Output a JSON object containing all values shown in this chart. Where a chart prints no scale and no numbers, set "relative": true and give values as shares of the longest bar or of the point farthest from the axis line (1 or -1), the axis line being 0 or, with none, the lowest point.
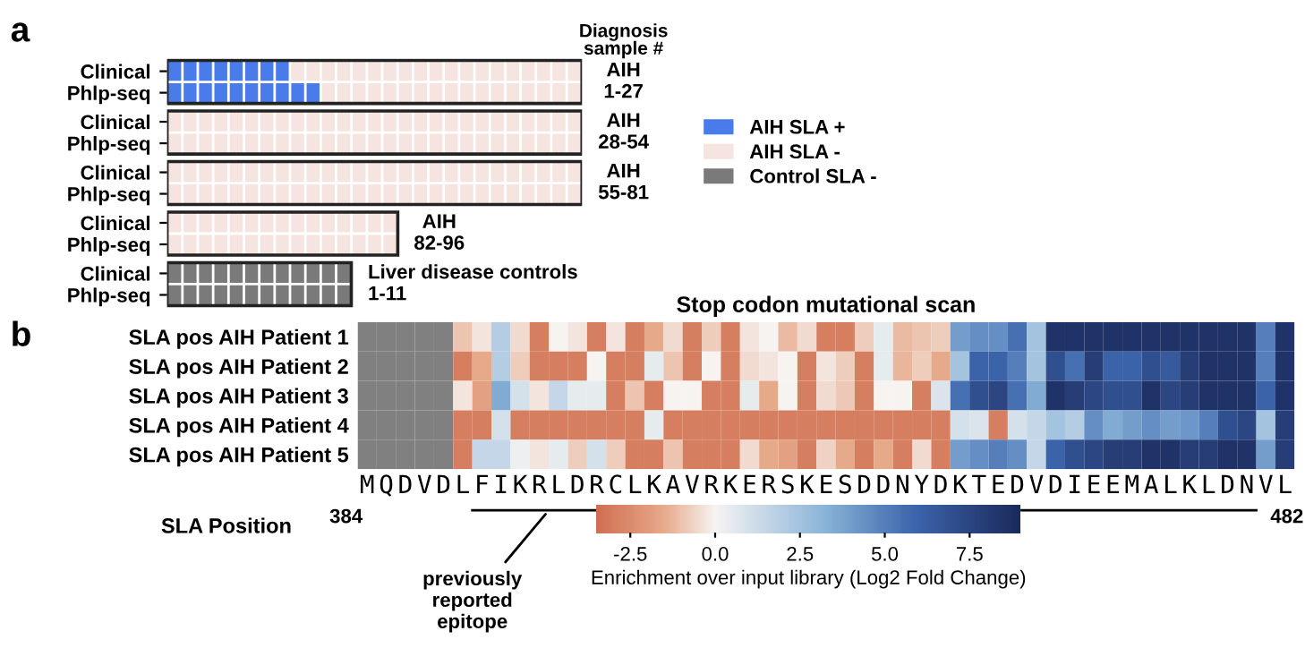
{
  "chart_data": [
    {
      "type": "bar",
      "orientation": "horizontal",
      "stacked": true,
      "categories": [
        "Clinical",
        "Phlp-seq",
        "Clinical",
        "Phlp-seq",
        "Clinical",
        "Phlp-seq",
        "Clinical",
        "Phlp-seq",
        "Clinical",
        "Phlp-seq"
      ],
      "series": [
        {
          "name": "AIH SLA +",
          "color": "#4a7bea",
          "values": [
            0.296,
            0.37,
            0,
            0,
            0,
            0,
            0,
            0,
            0,
            0
          ]
        },
        {
          "name": "AIH SLA -",
          "color": "#f5e4df",
          "values": [
            0.704,
            0.63,
            1,
            1,
            1,
            1,
            0.556,
            0.556,
            0,
            0
          ]
        },
        {
          "name": "Control SLA -",
          "color": "#7a7a7a",
          "values": [
            0,
            0,
            0,
            0,
            0,
            0,
            0,
            0,
            0.444,
            0.444
          ]
        }
      ],
      "relative": true,
      "tick_labels": "y",
      "legend": "right",
      "annotations": [
        "a",
        "Diagnosis\nsample #",
        "AIH\n1-27",
        "AIH\n28-54",
        "AIH\n55-81",
        "AIH\n82-96",
        "Liver disease controls\n1-11"
      ]
    },
    {
      "type": "heatmap",
      "title": "Stop codon mutational scan",
      "xlabel": "SLA Position",
      "clabel": "Enrichment over input library (Log2 Fold Change)",
      "categories": [
        "M",
        "Q",
        "D",
        "V",
        "D",
        "L",
        "F",
        "I",
        "K",
        "R",
        "L",
        "D",
        "R",
        "C",
        "L",
        "K",
        "A",
        "V",
        "R",
        "K",
        "E",
        "R",
        "S",
        "K",
        "E",
        "S",
        "D",
        "D",
        "N",
        "Y",
        "D",
        "K",
        "T",
        "E",
        "D",
        "V",
        "D",
        "I",
        "E",
        "E",
        "M",
        "A",
        "L",
        "K",
        "L",
        "D",
        "N",
        "V",
        "L"
      ],
      "y_categories": [
        "SLA pos AIH Patient 1",
        "SLA pos AIH Patient 2",
        "SLA pos AIH Patient 3",
        "SLA pos AIH Patient 4",
        "SLA pos AIH Patient 5"
      ],
      "cells": [
        [
          null,
          null,
          null,
          null,
          null,
          -1,
          -0.3,
          2,
          -0.5,
          -3,
          0,
          -0.3,
          -3,
          -0.3,
          -3,
          -1.5,
          -0.5,
          -3,
          -0.8,
          -3,
          -0.3,
          0,
          -1.2,
          -0.5,
          -3,
          -3,
          -0.8,
          0.5,
          -1.2,
          -1,
          -0.8,
          4,
          4.5,
          4.5,
          5.5,
          2.5,
          8.5,
          8.5,
          8.5,
          8.5,
          8.5,
          8.5,
          8.5,
          8.5,
          8.5,
          8.5,
          8.5,
          5,
          8.5
        ],
        [
          null,
          null,
          null,
          null,
          null,
          -3,
          -1.5,
          2,
          -0.8,
          -3,
          -3,
          -3,
          0,
          -3,
          -3,
          0.5,
          -1,
          -3,
          0,
          -3,
          -0.5,
          -0.3,
          0,
          -3,
          -0.3,
          -0.8,
          -3,
          0.5,
          -1.3,
          -0.8,
          -1.5,
          2.5,
          6,
          6,
          5,
          2.5,
          7,
          5.5,
          8,
          6,
          6,
          7,
          6.5,
          8,
          8.5,
          8.5,
          8.5,
          5,
          8.5
        ],
        [
          null,
          null,
          null,
          null,
          null,
          -0.3,
          -1.8,
          3.5,
          1,
          -0.3,
          1.5,
          0.5,
          0.5,
          -3,
          -1,
          -3,
          0,
          0,
          -3,
          -3,
          0.5,
          -1.5,
          0,
          -3,
          -0.5,
          -0.9,
          -3,
          0,
          0,
          -3,
          0.8,
          5.5,
          7,
          7.5,
          5.5,
          3.5,
          8.5,
          8,
          7.5,
          7,
          7,
          8.5,
          7.5,
          8,
          8.5,
          8.5,
          8.5,
          6,
          8.5
        ],
        [
          null,
          null,
          null,
          null,
          null,
          -3,
          -3,
          1,
          -3,
          -3,
          -3,
          -3,
          -3,
          -3,
          -3,
          0.5,
          -3,
          -3,
          -3,
          -3,
          -3,
          -3,
          -3,
          -3,
          -3,
          -3,
          -3,
          -3,
          -3,
          -3,
          -3,
          1,
          0.8,
          -3,
          1,
          1.5,
          2.5,
          2,
          4.5,
          3.5,
          4,
          4.5,
          4,
          4.2,
          5,
          7,
          7.5,
          2.5,
          8
        ],
        [
          null,
          null,
          null,
          null,
          null,
          -3,
          1.5,
          1.5,
          0.3,
          -0.3,
          0.5,
          -0.8,
          1,
          -0.8,
          -3,
          -3,
          -1,
          -3,
          -3,
          -3,
          -0.5,
          -1.5,
          -1.8,
          -3,
          -0.7,
          -1.5,
          -3,
          -1.5,
          -3,
          -0.5,
          -3,
          4,
          4.5,
          5,
          4.5,
          1.5,
          6,
          7,
          7.5,
          8,
          8,
          8.5,
          8.5,
          8,
          8,
          8.5,
          8.5,
          4,
          8
        ]
      ],
      "clim": [
        -3.5,
        9
      ],
      "cticks": [
        {
          "value": -2.5,
          "label": "-2.5"
        },
        {
          "value": 0,
          "label": "0.0"
        },
        2.5,
        {
          "value": 5,
          "label": "5.0"
        },
        7.5
      ],
      "annotations": [
        "b",
        "384",
        "482",
        "previously\nreported\nepitope"
      ]
    }
  ]
}
